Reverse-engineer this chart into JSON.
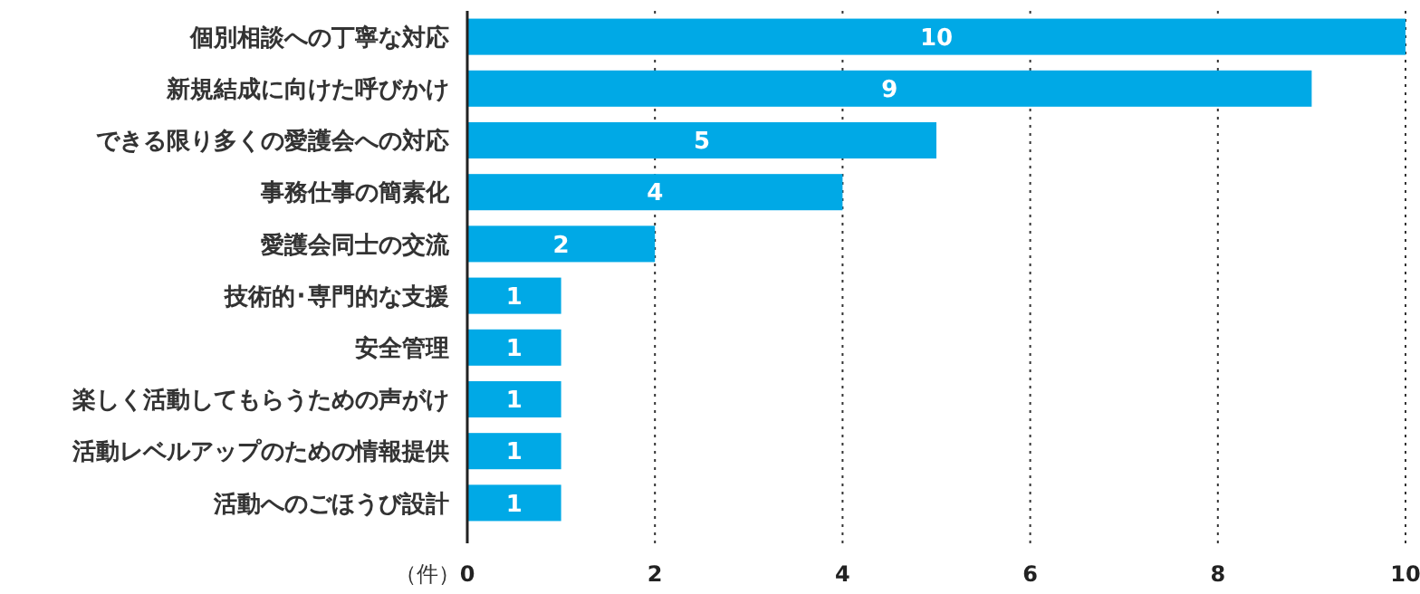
{
  "chart_data": {
    "type": "bar",
    "orientation": "horizontal",
    "xlabel": "（件）",
    "categories": [
      "個別相談への丁寧な対応",
      "新規結成に向けた呼びかけ",
      "できる限り多くの愛護会への対応",
      "事務仕事の簡素化",
      "愛護会同士の交流",
      "技術的･専門的な支援",
      "安全管理",
      "楽しく活動してもらうための声がけ",
      "活動レベルアップのための情報提供",
      "活動へのごほうび設計"
    ],
    "values": [
      10,
      9,
      5,
      4,
      2,
      1,
      1,
      1,
      1,
      1
    ],
    "color": "#00a9e6",
    "xlim": [
      0,
      10
    ],
    "xticks": [
      0,
      2,
      4,
      6,
      8,
      10
    ],
    "grid": "x",
    "data_labels": true
  }
}
